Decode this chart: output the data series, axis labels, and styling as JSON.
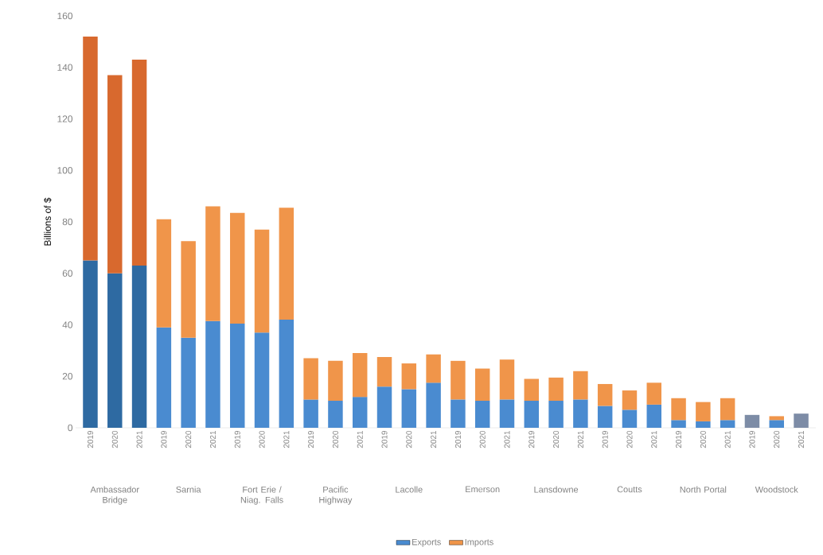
{
  "chart_data": {
    "type": "bar",
    "stacked": true,
    "ylabel": "Billions of $",
    "legend": "bottom",
    "categories": [
      "2019",
      "2020",
      "2021",
      "2019",
      "2020",
      "2021",
      "2019",
      "2020",
      "2021",
      "2019",
      "2020",
      "2021",
      "2019",
      "2020",
      "2021",
      "2019",
      "2020",
      "2021",
      "2019",
      "2020",
      "2021",
      "2019",
      "2020",
      "2021",
      "2019",
      "2020",
      "2021",
      "2019",
      "2020",
      "2021"
    ],
    "annotations": [
      "Ambassador Bridge",
      "Sarnia",
      "Fort Erie / Niag. Falls",
      "Pacific Highway",
      "Lacolle",
      "Emerson",
      "Lansdowne",
      "Coutts",
      "North Portal",
      "Woodstock"
    ],
    "ylim": [
      0,
      160
    ],
    "yticks": [
      0,
      20,
      40,
      60,
      80,
      100,
      120,
      140,
      160
    ],
    "series": [
      {
        "name": "Exports",
        "color": "#4a8bd0",
        "values": [
          65,
          60,
          63,
          39,
          35,
          41.5,
          40.5,
          37,
          42,
          11,
          10.5,
          12,
          16,
          15,
          17.5,
          11,
          10.5,
          11,
          10.5,
          10.5,
          11,
          8.5,
          7,
          9,
          3,
          2.5,
          3,
          5,
          3,
          5.5
        ],
        "colors": [
          "#2e6aa2",
          "#2e6aa2",
          "#2e6aa2",
          "#4a8bd0",
          "#4a8bd0",
          "#4a8bd0",
          "#4a8bd0",
          "#4a8bd0",
          "#4a8bd0",
          "#4a8bd0",
          "#4a8bd0",
          "#4a8bd0",
          "#4a8bd0",
          "#4a8bd0",
          "#4a8bd0",
          "#4a8bd0",
          "#4a8bd0",
          "#4a8bd0",
          "#4a8bd0",
          "#4a8bd0",
          "#4a8bd0",
          "#4a8bd0",
          "#4a8bd0",
          "#4a8bd0",
          "#4a8bd0",
          "#4a8bd0",
          "#4a8bd0",
          "#7d8ca6",
          "#4a8bd0",
          "#7d8ca6"
        ]
      },
      {
        "name": "Imports",
        "color": "#f0954a",
        "values": [
          87,
          77,
          80,
          42,
          37.5,
          44.5,
          43,
          40,
          43.5,
          16,
          15.5,
          17,
          11.5,
          10,
          11,
          15,
          12.5,
          15.5,
          8.5,
          9,
          11,
          8.5,
          7.5,
          8.5,
          8.5,
          7.5,
          8.5,
          null,
          1.5,
          null
        ],
        "colors": [
          "#d8692e",
          "#d8692e",
          "#d8692e",
          "#f0954a",
          "#f0954a",
          "#f0954a",
          "#f0954a",
          "#f0954a",
          "#f0954a",
          "#f0954a",
          "#f0954a",
          "#f0954a",
          "#f0954a",
          "#f0954a",
          "#f0954a",
          "#f0954a",
          "#f0954a",
          "#f0954a",
          "#f0954a",
          "#f0954a",
          "#f0954a",
          "#f0954a",
          "#f0954a",
          "#f0954a",
          "#f0954a",
          "#f0954a",
          "#f0954a",
          "#f0954a",
          "#f0954a",
          "#f0954a"
        ]
      }
    ]
  }
}
